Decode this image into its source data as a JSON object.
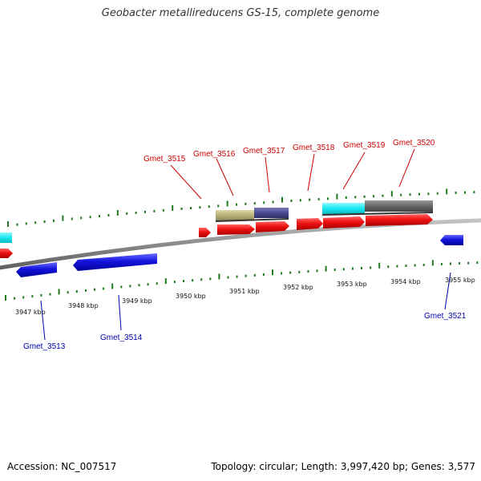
{
  "title": "Geobacter metallireducens GS-15, complete genome",
  "footer": {
    "accession": "Accession: NC_007517",
    "summary": "Topology: circular; Length: 3,997,420 bp; Genes: 3,577"
  },
  "colors": {
    "forward_gene": "#ee1111",
    "reverse_gene": "#1111dd",
    "cyan_feature": "#18e8f0",
    "olive_feature": "#b8b27a",
    "slate_feature": "#4a4a8e",
    "gray_feature": "#666666",
    "backbone": "#8a8a8a",
    "tick": "#1f7a1f",
    "forward_label": "#cc0000",
    "reverse_label": "#0000aa"
  },
  "kbp_ticks": [
    "3947 kbp",
    "3948 kbp",
    "3949 kbp",
    "3950 kbp",
    "3951 kbp",
    "3952 kbp",
    "3953 kbp",
    "3954 kbp",
    "3955 kbp"
  ],
  "forward_genes": [
    "Gmet_3515",
    "Gmet_3516",
    "Gmet_3517",
    "Gmet_3518",
    "Gmet_3519",
    "Gmet_3520"
  ],
  "reverse_genes": [
    "Gmet_3513",
    "Gmet_3514",
    "Gmet_3521"
  ]
}
